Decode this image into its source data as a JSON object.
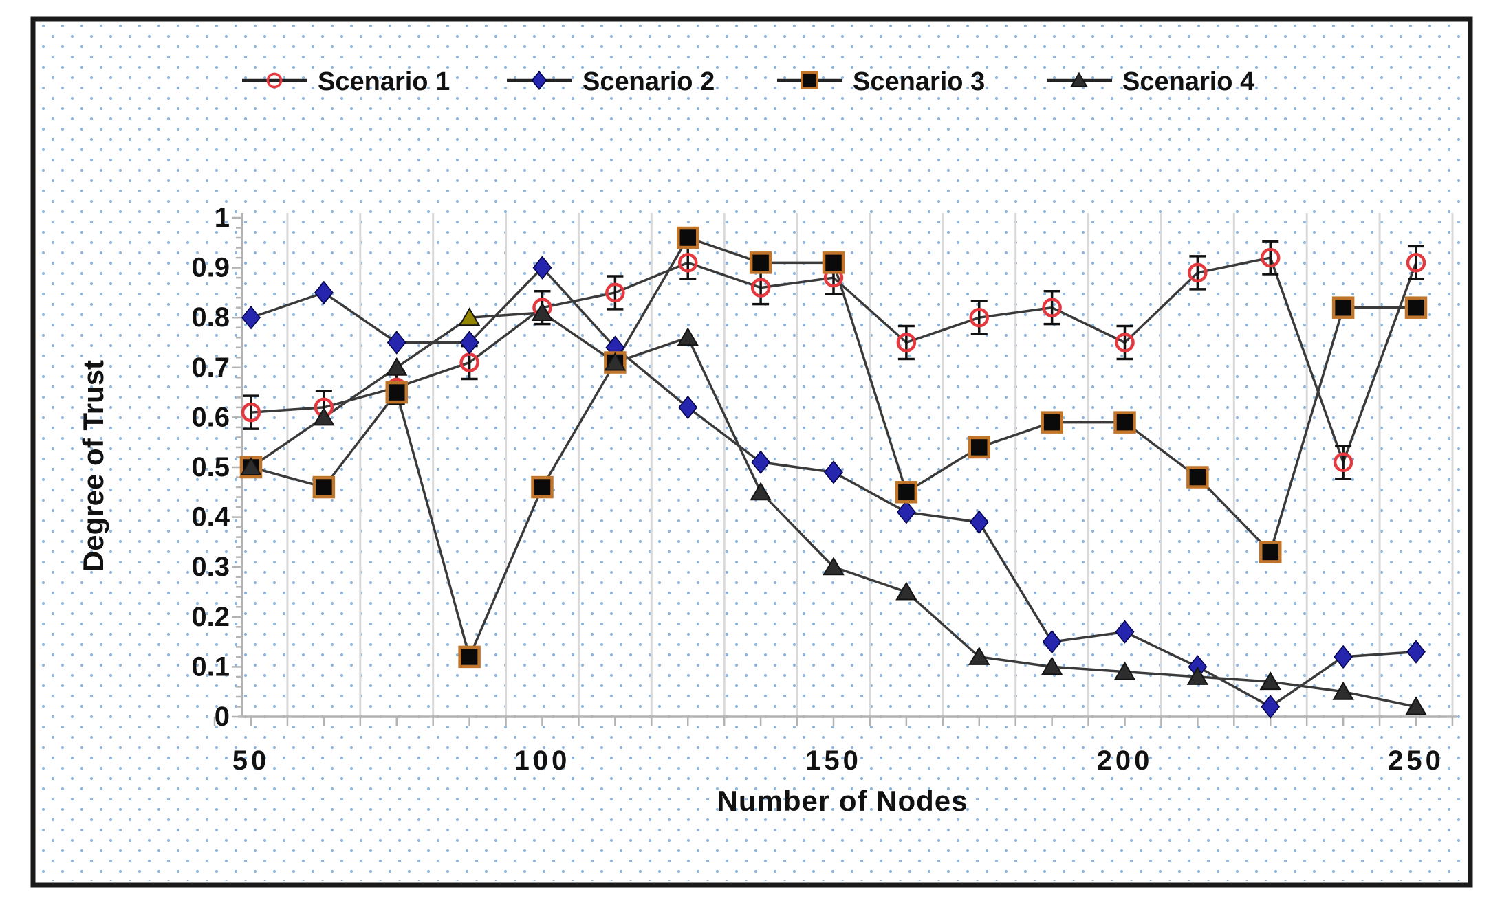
{
  "figure": {
    "background": "#ffffff",
    "border_color": "#1a1a1a",
    "dot_color": "#8fb6de",
    "gridline_color": "#d9d9d9",
    "axis_color": "#b3b3b3",
    "series_line_color": "#3a3a3a",
    "text_color": "#111111"
  },
  "chart_data": {
    "type": "line",
    "title": "",
    "xlabel": "Number of Nodes",
    "ylabel": "Degree of Trust",
    "x": [
      50,
      62.5,
      75,
      87.5,
      100,
      112.5,
      125,
      137.5,
      150,
      162.5,
      175,
      187.5,
      200,
      212.5,
      225,
      237.5,
      250
    ],
    "xlim": [
      50,
      250
    ],
    "ylim": [
      0,
      1
    ],
    "x_tick_values": [
      50,
      100,
      150,
      200,
      250
    ],
    "x_tick_labels": [
      "50",
      "100",
      "150",
      "200",
      "250"
    ],
    "y_tick_values": [
      1,
      0.9,
      0.8,
      0.7,
      0.6,
      0.5,
      0.4,
      0.3,
      0.2,
      0.1,
      0
    ],
    "y_tick_labels": [
      "1",
      "0.9",
      "0.8",
      "0.7",
      "0.6",
      "0.5",
      "0.4",
      "0.3",
      "0.2",
      "0.1",
      "0"
    ],
    "grid": "vertical-between-categories",
    "legend_position": "top",
    "series": [
      {
        "name": "Scenario 1",
        "marker": "open-circle",
        "marker_color": "#e4393f",
        "error_bar": 0.033,
        "values": [
          0.61,
          0.62,
          0.66,
          0.71,
          0.82,
          0.85,
          0.91,
          0.86,
          0.88,
          0.75,
          0.8,
          0.82,
          0.75,
          0.89,
          0.92,
          0.51,
          0.91
        ]
      },
      {
        "name": "Scenario 2",
        "marker": "diamond",
        "marker_color": "#2525ad",
        "values": [
          0.8,
          0.85,
          0.75,
          0.75,
          0.9,
          0.74,
          0.62,
          0.51,
          0.49,
          0.41,
          0.39,
          0.15,
          0.17,
          0.1,
          0.02,
          0.12,
          0.13
        ]
      },
      {
        "name": "Scenario 3",
        "marker": "square",
        "marker_color": "#0a0a0a",
        "marker_border": "#c0752b",
        "values": [
          0.5,
          0.46,
          0.65,
          0.12,
          0.46,
          0.71,
          0.96,
          0.91,
          0.91,
          0.45,
          0.54,
          0.59,
          0.59,
          0.48,
          0.33,
          0.82,
          0.82
        ]
      },
      {
        "name": "Scenario 4",
        "marker": "triangle",
        "marker_color": "#2d2d2d",
        "highlight_point": {
          "x": 87.5,
          "color": "#948500"
        },
        "values": [
          0.5,
          0.6,
          0.7,
          0.8,
          0.81,
          0.71,
          0.76,
          0.45,
          0.3,
          0.25,
          0.12,
          0.1,
          0.09,
          0.08,
          0.07,
          0.05,
          0.02
        ]
      }
    ]
  }
}
